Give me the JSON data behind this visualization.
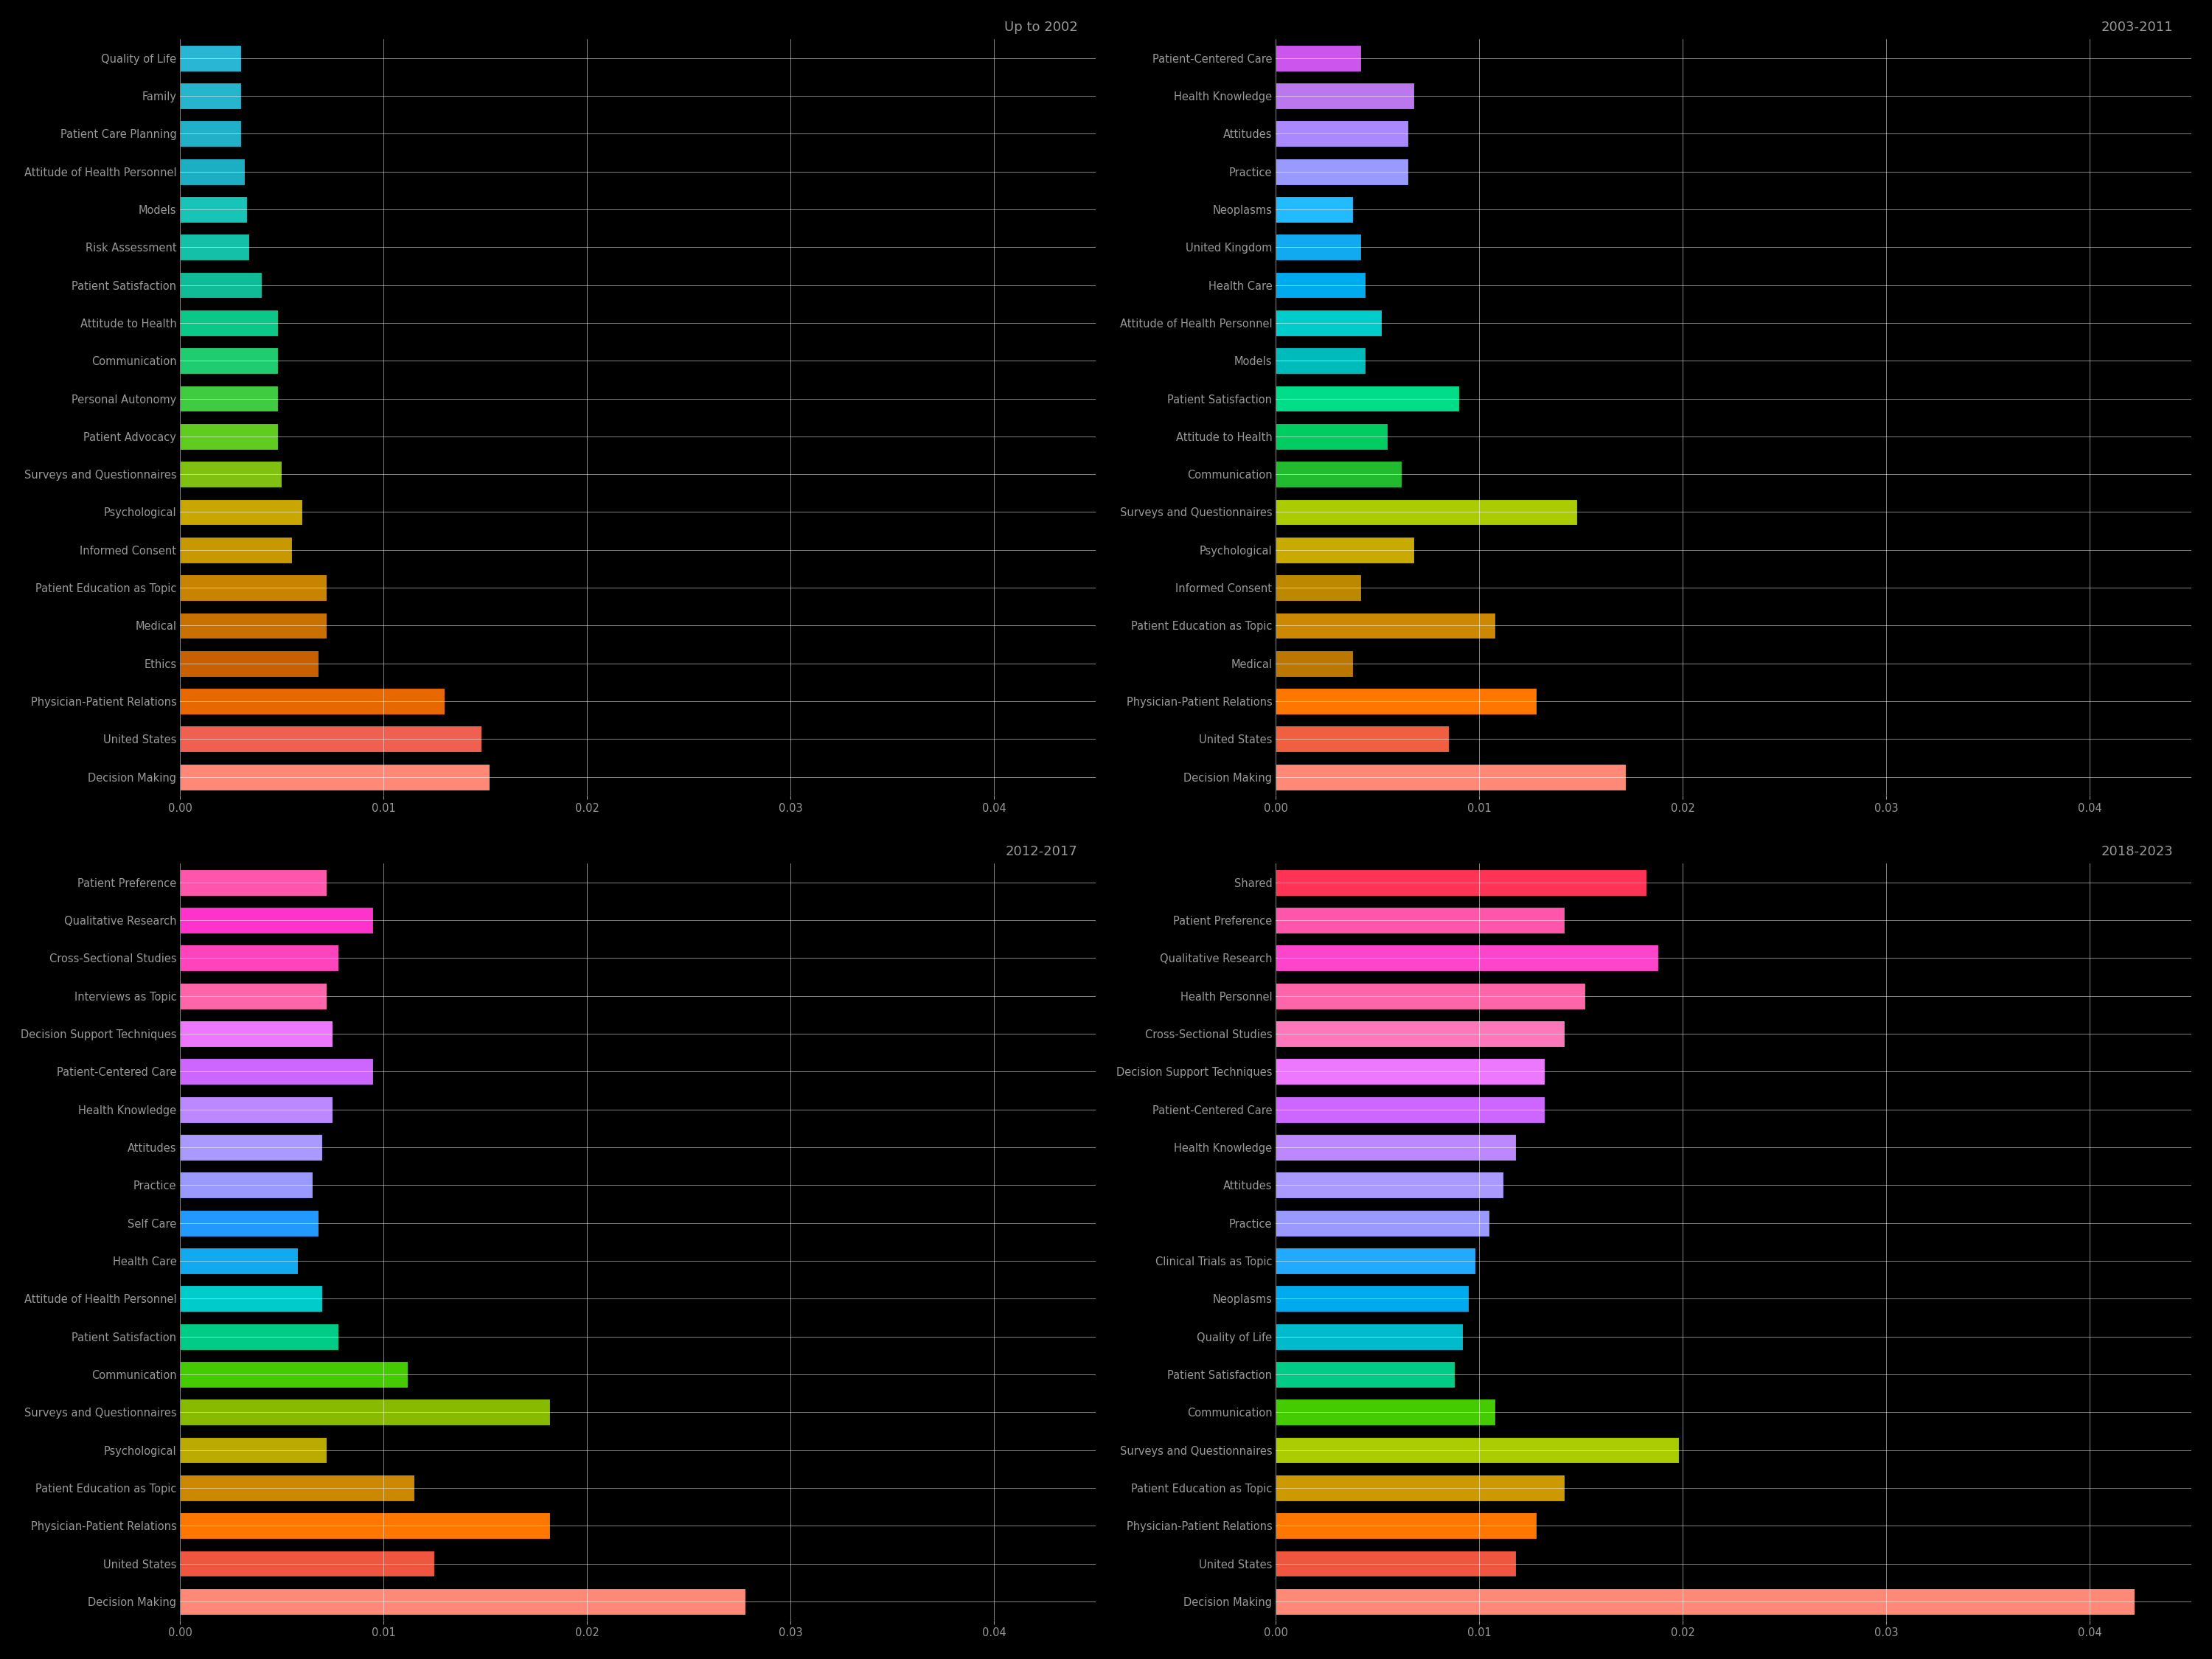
{
  "background_color": "#000000",
  "text_color": "#999999",
  "subplots": [
    {
      "title": "Up to 2002",
      "categories": [
        "Quality of Life",
        "Family",
        "Patient Care Planning",
        "Attitude of Health Personnel",
        "Models",
        "Risk Assessment",
        "Patient Satisfaction",
        "Attitude to Health",
        "Communication",
        "Personal Autonomy",
        "Patient Advocacy",
        "Surveys and Questionnaires",
        "Psychological",
        "Informed Consent",
        "Patient Education as Topic",
        "Medical",
        "Ethics",
        "Physician-Patient Relations",
        "United States",
        "Decision Making"
      ],
      "values": [
        0.003,
        0.003,
        0.003,
        0.0032,
        0.0033,
        0.0034,
        0.004,
        0.0048,
        0.0048,
        0.0048,
        0.0048,
        0.005,
        0.006,
        0.0055,
        0.0072,
        0.0072,
        0.0068,
        0.013,
        0.0148,
        0.0152
      ],
      "colors": [
        "#29b6d4",
        "#25b5cc",
        "#20b0c8",
        "#1cafc4",
        "#18c4b8",
        "#14c0a8",
        "#10bb98",
        "#0cc888",
        "#20cc70",
        "#40cc40",
        "#60cc20",
        "#80c010",
        "#c8a800",
        "#c89800",
        "#c88400",
        "#c87000",
        "#c86000",
        "#e86800",
        "#f06050",
        "#ff8877"
      ],
      "xlim": [
        0,
        0.045
      ]
    },
    {
      "title": "2003-2011",
      "categories": [
        "Patient-Centered Care",
        "Health Knowledge",
        "Attitudes",
        "Practice",
        "Neoplasms",
        "United Kingdom",
        "Health Care",
        "Attitude of Health Personnel",
        "Models",
        "Patient Satisfaction",
        "Attitude to Health",
        "Communication",
        "Surveys and Questionnaires",
        "Psychological",
        "Informed Consent",
        "Patient Education as Topic",
        "Medical",
        "Physician-Patient Relations",
        "United States",
        "Decision Making"
      ],
      "values": [
        0.0042,
        0.0068,
        0.0065,
        0.0065,
        0.0038,
        0.0042,
        0.0044,
        0.0052,
        0.0044,
        0.009,
        0.0055,
        0.0062,
        0.0148,
        0.0068,
        0.0042,
        0.0108,
        0.0038,
        0.0128,
        0.0085,
        0.0172
      ],
      "colors": [
        "#cc55ee",
        "#bb77ee",
        "#aa88ff",
        "#9999ff",
        "#22bbff",
        "#11aaf0",
        "#00aaee",
        "#00cccc",
        "#00bbbb",
        "#00dd88",
        "#00cc60",
        "#22bb30",
        "#aacc00",
        "#c8aa00",
        "#bb8800",
        "#cc8800",
        "#bb7700",
        "#ff7700",
        "#f06040",
        "#ff8877"
      ],
      "xlim": [
        0,
        0.045
      ]
    },
    {
      "title": "2012-2017",
      "categories": [
        "Patient Preference",
        "Qualitative Research",
        "Cross-Sectional Studies",
        "Interviews as Topic",
        "Decision Support Techniques",
        "Patient-Centered Care",
        "Health Knowledge",
        "Attitudes",
        "Practice",
        "Self Care",
        "Health Care",
        "Attitude of Health Personnel",
        "Patient Satisfaction",
        "Communication",
        "Surveys and Questionnaires",
        "Psychological",
        "Patient Education as Topic",
        "Physician-Patient Relations",
        "United States",
        "Decision Making"
      ],
      "values": [
        0.0072,
        0.0095,
        0.0078,
        0.0072,
        0.0075,
        0.0095,
        0.0075,
        0.007,
        0.0065,
        0.0068,
        0.0058,
        0.007,
        0.0078,
        0.0112,
        0.0182,
        0.0072,
        0.0115,
        0.0182,
        0.0125,
        0.0278
      ],
      "colors": [
        "#ff55aa",
        "#ff33cc",
        "#ff44bb",
        "#ff66aa",
        "#ee77ff",
        "#cc66ff",
        "#bb88ff",
        "#aa99ff",
        "#9999ff",
        "#2299ff",
        "#11aaf0",
        "#00cccc",
        "#00cc88",
        "#44cc00",
        "#88bb00",
        "#bbaa00",
        "#cc8800",
        "#ff7700",
        "#f05540",
        "#ff8877"
      ],
      "xlim": [
        0,
        0.045
      ]
    },
    {
      "title": "2018-2023",
      "categories": [
        "Shared",
        "Patient Preference",
        "Qualitative Research",
        "Health Personnel",
        "Cross-Sectional Studies",
        "Decision Support Techniques",
        "Patient-Centered Care",
        "Health Knowledge",
        "Attitudes",
        "Practice",
        "Clinical Trials as Topic",
        "Neoplasms",
        "Quality of Life",
        "Patient Satisfaction",
        "Communication",
        "Surveys and Questionnaires",
        "Patient Education as Topic",
        "Physician-Patient Relations",
        "United States",
        "Decision Making"
      ],
      "values": [
        0.0182,
        0.0142,
        0.0188,
        0.0152,
        0.0142,
        0.0132,
        0.0132,
        0.0118,
        0.0112,
        0.0105,
        0.0098,
        0.0095,
        0.0092,
        0.0088,
        0.0108,
        0.0198,
        0.0142,
        0.0128,
        0.0118,
        0.0422
      ],
      "colors": [
        "#ff3355",
        "#ff55aa",
        "#ff44cc",
        "#ff66aa",
        "#ff77bb",
        "#ee77ff",
        "#cc66ff",
        "#bb88ff",
        "#aa99ff",
        "#9999ff",
        "#22aaff",
        "#00aaee",
        "#00bbcc",
        "#00cc88",
        "#44cc00",
        "#aacc00",
        "#cc9900",
        "#ff7700",
        "#f05540",
        "#ff8877"
      ],
      "xlim": [
        0,
        0.045
      ]
    }
  ]
}
